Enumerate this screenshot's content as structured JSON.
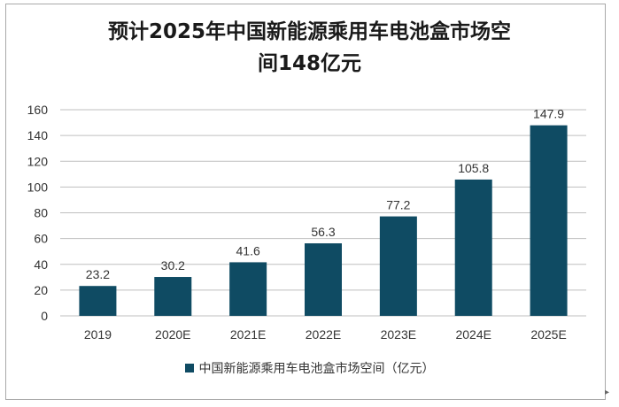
{
  "chart_data": {
    "type": "bar",
    "title_lines": [
      "预计2025年中国新能源乘用车电池盒市场空",
      "间148亿元"
    ],
    "categories": [
      "2019",
      "2020E",
      "2021E",
      "2022E",
      "2023E",
      "2024E",
      "2025E"
    ],
    "series": [
      {
        "name": "中国新能源乘用车电池盒市场空间（亿元）",
        "values": [
          23.2,
          30.2,
          41.6,
          56.3,
          77.2,
          105.8,
          147.9
        ],
        "labels": [
          "23.2",
          "30.2",
          "41.6",
          "56.3",
          "77.2",
          "105.8",
          "147.9"
        ],
        "color": "#0f4b63"
      }
    ],
    "ylim": [
      0,
      160
    ],
    "yticks": [
      0,
      20,
      40,
      60,
      80,
      100,
      120,
      140,
      160
    ],
    "grid": true,
    "legend_position": "bottom"
  }
}
